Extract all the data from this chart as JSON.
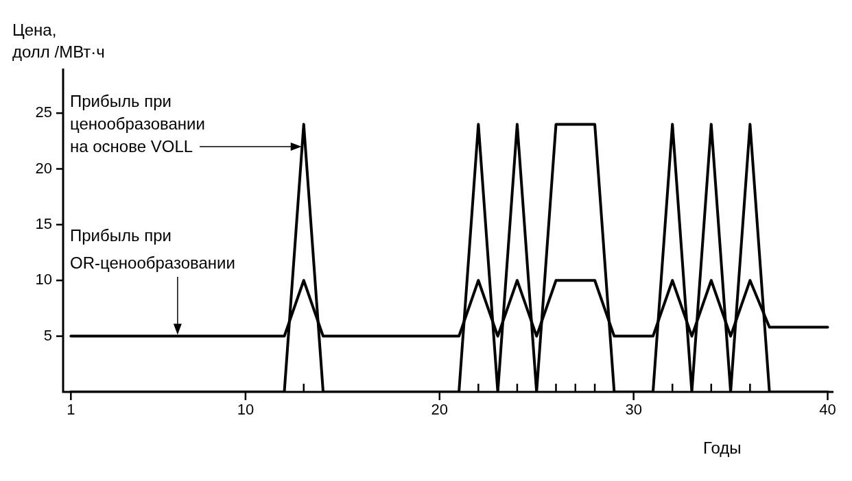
{
  "chart_data": {
    "type": "line",
    "xlabel": "Годы",
    "ylabel": "Цена,\nдолл /МВт·ч",
    "xlim": [
      0.6,
      40.3
    ],
    "ylim": [
      0,
      29
    ],
    "xticks": [
      1,
      10,
      {
        "value": 13,
        "label": null
      },
      20,
      {
        "value": 22,
        "label": null
      },
      {
        "value": 24,
        "label": null
      },
      {
        "value": 26,
        "label": null
      },
      {
        "value": 27,
        "label": null
      },
      {
        "value": 28,
        "label": null
      },
      30,
      {
        "value": 32,
        "label": null
      },
      {
        "value": 34,
        "label": null
      },
      {
        "value": 36,
        "label": null
      },
      40
    ],
    "yticks": [
      5,
      10,
      15,
      20,
      25
    ],
    "x": [
      1,
      2,
      3,
      4,
      5,
      6,
      7,
      8,
      9,
      10,
      11,
      12,
      13,
      14,
      15,
      16,
      17,
      18,
      19,
      20,
      21,
      22,
      23,
      24,
      25,
      26,
      27,
      28,
      29,
      30,
      31,
      32,
      33,
      34,
      35,
      36,
      37,
      38,
      39,
      40
    ],
    "series": [
      {
        "color": "#000000",
        "values": [
          0,
          0,
          0,
          0,
          0,
          0,
          0,
          0,
          0,
          0,
          0,
          0,
          24,
          0,
          0,
          0,
          0,
          0,
          0,
          0,
          0,
          24,
          0,
          24,
          0,
          24,
          24,
          24,
          0,
          0,
          0,
          24,
          0,
          24,
          0,
          24,
          0,
          0,
          0,
          0
        ]
      },
      {
        "color": "#000000",
        "values": [
          5,
          5,
          5,
          5,
          5,
          5,
          5,
          5,
          5,
          5,
          5,
          5,
          10,
          5,
          5,
          5,
          5,
          5,
          5,
          5,
          5,
          10,
          5,
          10,
          5,
          10,
          10,
          10,
          5,
          5,
          5,
          10,
          5,
          10,
          5,
          10,
          5.8,
          5.8,
          5.8,
          5.8
        ]
      }
    ],
    "annotations": [
      {
        "text": "Прибыль при\nценообразовании\nна основе VOLL",
        "x": 13,
        "y": 22
      },
      {
        "text": "Прибыль при\nOR-ценообразовании",
        "x": 6.5,
        "y": 5
      }
    ],
    "legend": false,
    "marker": "none",
    "line_style": "solid"
  }
}
